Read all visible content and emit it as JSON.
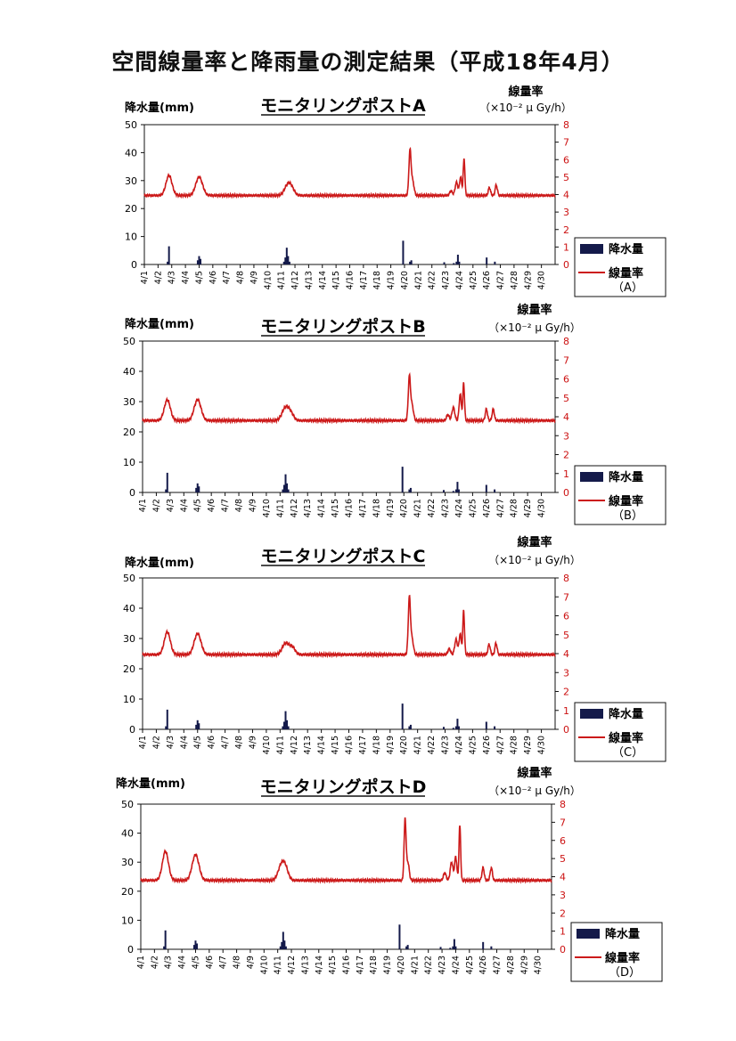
{
  "title": "空間線量率と降雨量の測定結果（平成18年4月）",
  "colors": {
    "dose_rate": "#cc1a1a",
    "precipitation": "#141a4a",
    "axis": "#111111"
  },
  "chart_data": [
    {
      "type": "bar+line",
      "title": "モニタリングポストA",
      "ylabel_left": "降水量(mm)",
      "ylabel_right_line1": "線量率",
      "ylabel_right_line2": "（×10⁻² μ Gy/h）",
      "ylim_left": [
        0,
        50
      ],
      "ylim_right": [
        0,
        8
      ],
      "yticks_left": [
        "0",
        "10",
        "20",
        "30",
        "40",
        "50"
      ],
      "yticks_right": [
        "0",
        "1",
        "2",
        "3",
        "4",
        "5",
        "6",
        "7",
        "8"
      ],
      "categories": [
        "4/1",
        "4/2",
        "4/3",
        "4/4",
        "4/5",
        "4/6",
        "4/7",
        "4/8",
        "4/9",
        "4/10",
        "4/11",
        "4/12",
        "4/13",
        "4/14",
        "4/15",
        "4/16",
        "4/17",
        "4/18",
        "4/19",
        "4/20",
        "4/21",
        "4/22",
        "4/23",
        "4/24",
        "4/25",
        "4/26",
        "4/27",
        "4/28",
        "4/29",
        "4/30"
      ],
      "legend": {
        "bar_label": "降水量",
        "line_label": "線量率",
        "line_sublabel": "（A）",
        "position": "bottom-right"
      },
      "series": [
        {
          "name": "降水量",
          "kind": "bar",
          "axis": "left",
          "x": [
            2.7,
            2.8,
            4.9,
            5.0,
            5.1,
            11.2,
            11.3,
            11.4,
            11.5,
            11.6,
            19.9,
            20.4,
            20.5,
            22.9,
            23.6,
            23.8,
            23.9,
            24.0,
            26.0,
            26.6
          ],
          "y": [
            1,
            6.5,
            1.5,
            3.0,
            2.0,
            1,
            2.5,
            6.0,
            3.0,
            1,
            8.5,
            1,
            1.5,
            0.8,
            0.5,
            1,
            3.5,
            1,
            2.5,
            1
          ]
        },
        {
          "name": "線量率",
          "kind": "line",
          "axis": "right",
          "baseline": 3.95,
          "peaks": [
            [
              2.8,
              1.15,
              0.22
            ],
            [
              5.0,
              1.05,
              0.25
            ],
            [
              11.5,
              0.65,
              0.25
            ],
            [
              11.8,
              0.2,
              0.2
            ],
            [
              20.4,
              2.55,
              0.08
            ],
            [
              20.6,
              0.8,
              0.1
            ],
            [
              23.4,
              0.25,
              0.1
            ],
            [
              23.8,
              0.75,
              0.1
            ],
            [
              24.1,
              1.05,
              0.08
            ],
            [
              24.35,
              2.1,
              0.06
            ],
            [
              26.2,
              0.45,
              0.08
            ],
            [
              26.7,
              0.6,
              0.08
            ]
          ]
        }
      ]
    },
    {
      "type": "bar+line",
      "title": "モニタリングポストB",
      "ylabel_left": "降水量(mm)",
      "ylabel_right_line1": "線量率",
      "ylabel_right_line2": "（×10⁻² μ Gy/h）",
      "ylim_left": [
        0,
        50
      ],
      "ylim_right": [
        0,
        8
      ],
      "yticks_left": [
        "0",
        "10",
        "20",
        "30",
        "40",
        "50"
      ],
      "yticks_right": [
        "0",
        "1",
        "2",
        "3",
        "4",
        "5",
        "6",
        "7",
        "8"
      ],
      "categories": [
        "4/1",
        "4/2",
        "4/3",
        "4/4",
        "4/5",
        "4/6",
        "4/7",
        "4/8",
        "4/9",
        "4/10",
        "4/11",
        "4/12",
        "4/13",
        "4/14",
        "4/15",
        "4/16",
        "4/17",
        "4/18",
        "4/19",
        "4/20",
        "4/21",
        "4/22",
        "4/23",
        "4/24",
        "4/25",
        "4/26",
        "4/27",
        "4/28",
        "4/29",
        "4/30"
      ],
      "legend": {
        "bar_label": "降水量",
        "line_label": "線量率",
        "line_sublabel": "（B）",
        "position": "bottom-right"
      },
      "series": [
        {
          "name": "降水量",
          "kind": "bar",
          "axis": "left",
          "x": [
            2.7,
            2.8,
            4.9,
            5.0,
            5.1,
            11.2,
            11.3,
            11.4,
            11.5,
            11.6,
            19.9,
            20.4,
            20.5,
            22.9,
            23.6,
            23.8,
            23.9,
            24.0,
            26.0,
            26.6
          ],
          "y": [
            1,
            6.5,
            1.5,
            3.0,
            2.0,
            1,
            2.5,
            6.0,
            3.0,
            1,
            8.5,
            1,
            1.5,
            0.8,
            0.5,
            1,
            3.5,
            1,
            2.5,
            1
          ]
        },
        {
          "name": "線量率",
          "kind": "line",
          "axis": "right",
          "baseline": 3.8,
          "peaks": [
            [
              2.8,
              1.1,
              0.22
            ],
            [
              5.0,
              1.1,
              0.25
            ],
            [
              11.4,
              0.7,
              0.25
            ],
            [
              11.8,
              0.3,
              0.2
            ],
            [
              20.4,
              2.3,
              0.08
            ],
            [
              20.6,
              0.8,
              0.1
            ],
            [
              23.2,
              0.3,
              0.1
            ],
            [
              23.6,
              0.7,
              0.1
            ],
            [
              24.1,
              1.4,
              0.08
            ],
            [
              24.35,
              2.0,
              0.06
            ],
            [
              26.0,
              0.6,
              0.08
            ],
            [
              26.5,
              0.6,
              0.08
            ]
          ]
        }
      ]
    },
    {
      "type": "bar+line",
      "title": "モニタリングポストC",
      "ylabel_left": "降水量(mm)",
      "ylabel_right_line1": "線量率",
      "ylabel_right_line2": "（×10⁻² μ Gy/h）",
      "ylim_left": [
        0,
        50
      ],
      "ylim_right": [
        0,
        8
      ],
      "yticks_left": [
        "0",
        "10",
        "20",
        "30",
        "40",
        "50"
      ],
      "yticks_right": [
        "0",
        "1",
        "2",
        "3",
        "4",
        "5",
        "6",
        "7",
        "8"
      ],
      "categories": [
        "4/1",
        "4/2",
        "4/3",
        "4/4",
        "4/5",
        "4/6",
        "4/7",
        "4/8",
        "4/9",
        "4/10",
        "4/11",
        "4/12",
        "4/13",
        "4/14",
        "4/15",
        "4/16",
        "4/17",
        "4/18",
        "4/19",
        "4/20",
        "4/21",
        "4/22",
        "4/23",
        "4/24",
        "4/25",
        "4/26",
        "4/27",
        "4/28",
        "4/29",
        "4/30"
      ],
      "legend": {
        "bar_label": "降水量",
        "line_label": "線量率",
        "line_sublabel": "（C）",
        "position": "bottom-right"
      },
      "series": [
        {
          "name": "降水量",
          "kind": "bar",
          "axis": "left",
          "x": [
            2.7,
            2.8,
            4.9,
            5.0,
            5.1,
            11.2,
            11.3,
            11.4,
            11.5,
            11.6,
            19.9,
            20.4,
            20.5,
            22.9,
            23.6,
            23.8,
            23.9,
            24.0,
            26.0,
            26.6
          ],
          "y": [
            1,
            6.5,
            1.5,
            3.0,
            2.0,
            1,
            2.5,
            6.0,
            3.0,
            1,
            8.5,
            1,
            1.5,
            0.8,
            0.5,
            1,
            3.5,
            1,
            2.5,
            1
          ]
        },
        {
          "name": "線量率",
          "kind": "line",
          "axis": "right",
          "baseline": 3.95,
          "peaks": [
            [
              2.8,
              1.2,
              0.22
            ],
            [
              5.0,
              1.1,
              0.25
            ],
            [
              11.4,
              0.6,
              0.25
            ],
            [
              11.9,
              0.35,
              0.2
            ],
            [
              20.4,
              3.0,
              0.08
            ],
            [
              20.6,
              0.8,
              0.1
            ],
            [
              23.3,
              0.3,
              0.1
            ],
            [
              23.8,
              0.8,
              0.1
            ],
            [
              24.1,
              1.1,
              0.08
            ],
            [
              24.35,
              2.35,
              0.06
            ],
            [
              26.2,
              0.55,
              0.08
            ],
            [
              26.7,
              0.6,
              0.08
            ]
          ]
        }
      ]
    },
    {
      "type": "bar+line",
      "title": "モニタリングポストD",
      "ylabel_left": "降水量(mm)",
      "ylabel_right_line1": "線量率",
      "ylabel_right_line2": "（×10⁻² μ Gy/h）",
      "ylim_left": [
        0,
        50
      ],
      "ylim_right": [
        0,
        8
      ],
      "yticks_left": [
        "0",
        "10",
        "20",
        "30",
        "40",
        "50"
      ],
      "yticks_right": [
        "0",
        "1",
        "2",
        "3",
        "4",
        "5",
        "6",
        "7",
        "8"
      ],
      "categories": [
        "4/1",
        "4/2",
        "4/3",
        "4/4",
        "4/5",
        "4/6",
        "4/7",
        "4/8",
        "4/9",
        "4/10",
        "4/11",
        "4/12",
        "4/13",
        "4/14",
        "4/15",
        "4/16",
        "4/17",
        "4/18",
        "4/19",
        "4/20",
        "4/21",
        "4/22",
        "4/23",
        "4/24",
        "4/25",
        "4/26",
        "4/27",
        "4/28",
        "4/29",
        "4/30"
      ],
      "legend": {
        "bar_label": "降水量",
        "line_label": "線量率",
        "line_sublabel": "（D）",
        "position": "bottom-right"
      },
      "series": [
        {
          "name": "降水量",
          "kind": "bar",
          "axis": "left",
          "x": [
            2.7,
            2.8,
            4.9,
            5.0,
            5.1,
            11.2,
            11.3,
            11.4,
            11.5,
            11.6,
            19.9,
            20.4,
            20.5,
            22.9,
            23.6,
            23.8,
            23.9,
            24.0,
            26.0,
            26.6
          ],
          "y": [
            1,
            6.5,
            1.5,
            3.0,
            2.0,
            1,
            2.5,
            6.0,
            3.0,
            1,
            8.5,
            1,
            1.5,
            0.8,
            0.5,
            1,
            3.5,
            1,
            2.5,
            1
          ]
        },
        {
          "name": "線量率",
          "kind": "line",
          "axis": "right",
          "baseline": 3.8,
          "peaks": [
            [
              2.8,
              1.6,
              0.22
            ],
            [
              5.0,
              1.4,
              0.25
            ],
            [
              11.3,
              0.9,
              0.25
            ],
            [
              11.6,
              0.4,
              0.2
            ],
            [
              20.3,
              3.3,
              0.07
            ],
            [
              20.5,
              1.0,
              0.1
            ],
            [
              23.2,
              0.4,
              0.1
            ],
            [
              23.7,
              1.0,
              0.1
            ],
            [
              24.0,
              1.3,
              0.08
            ],
            [
              24.3,
              3.0,
              0.06
            ],
            [
              26.0,
              0.7,
              0.08
            ],
            [
              26.6,
              0.7,
              0.08
            ]
          ]
        }
      ]
    }
  ]
}
